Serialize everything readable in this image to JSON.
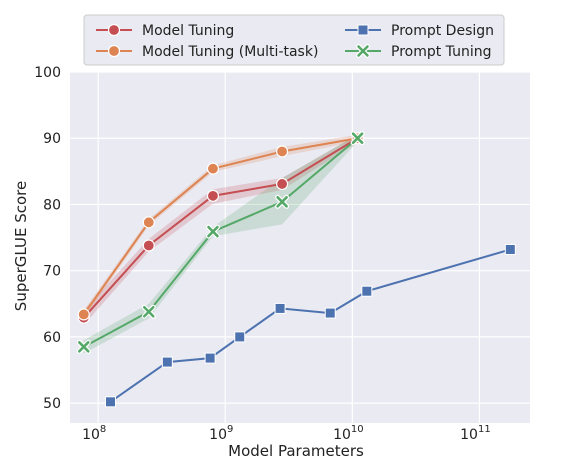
{
  "chart_data": {
    "type": "line",
    "xlabel": "Model Parameters",
    "ylabel": "SuperGLUE Score",
    "xscale": "log",
    "xlim": [
      60000000,
      250000000000
    ],
    "ylim": [
      47,
      100
    ],
    "grid": true,
    "legend": {
      "placement": "top",
      "columns": 2
    },
    "xticks": [
      {
        "value": 100000000,
        "base": "10",
        "exp": "8"
      },
      {
        "value": 1000000000,
        "base": "10",
        "exp": "9"
      },
      {
        "value": 10000000000,
        "base": "10",
        "exp": "10"
      },
      {
        "value": 100000000000,
        "base": "10",
        "exp": "11"
      }
    ],
    "yticks": [
      50,
      60,
      70,
      80,
      90,
      100
    ],
    "series": [
      {
        "name": "Model Tuning",
        "color": "#c44e52",
        "marker": "circle",
        "x": [
          77000000,
          250000000,
          800000000,
          2800000000,
          11000000000
        ],
        "y": [
          62.9,
          73.8,
          81.3,
          83.1,
          90.0
        ],
        "lower": [
          61.8,
          72.9,
          80.1,
          82.2,
          89.4
        ],
        "upper": [
          64.0,
          74.8,
          82.3,
          84.0,
          90.5
        ]
      },
      {
        "name": "Model Tuning (Multi-task)",
        "color": "#dd8452",
        "marker": "circle",
        "x": [
          77000000,
          250000000,
          800000000,
          2800000000,
          11000000000
        ],
        "y": [
          63.4,
          77.3,
          85.4,
          88.0,
          90.0
        ],
        "lower": [
          62.8,
          76.8,
          84.9,
          87.3,
          89.5
        ],
        "upper": [
          64.0,
          77.8,
          85.9,
          88.7,
          90.5
        ]
      },
      {
        "name": "Prompt Design",
        "color": "#4c72b0",
        "marker": "square",
        "x": [
          125000000,
          350000000,
          760000000,
          1300000000,
          2700000000,
          6700000000,
          13000000000,
          175000000000
        ],
        "y": [
          50.2,
          56.2,
          56.8,
          60.0,
          64.3,
          63.6,
          66.9,
          73.2
        ]
      },
      {
        "name": "Prompt Tuning",
        "color": "#55a868",
        "marker": "x",
        "x": [
          77000000,
          250000000,
          800000000,
          2800000000,
          11000000000
        ],
        "y": [
          58.5,
          63.8,
          75.9,
          80.4,
          90.0
        ],
        "lower": [
          57.5,
          62.8,
          75.2,
          77.0,
          89.5
        ],
        "upper": [
          59.5,
          65.0,
          76.6,
          84.0,
          90.6
        ]
      }
    ]
  }
}
